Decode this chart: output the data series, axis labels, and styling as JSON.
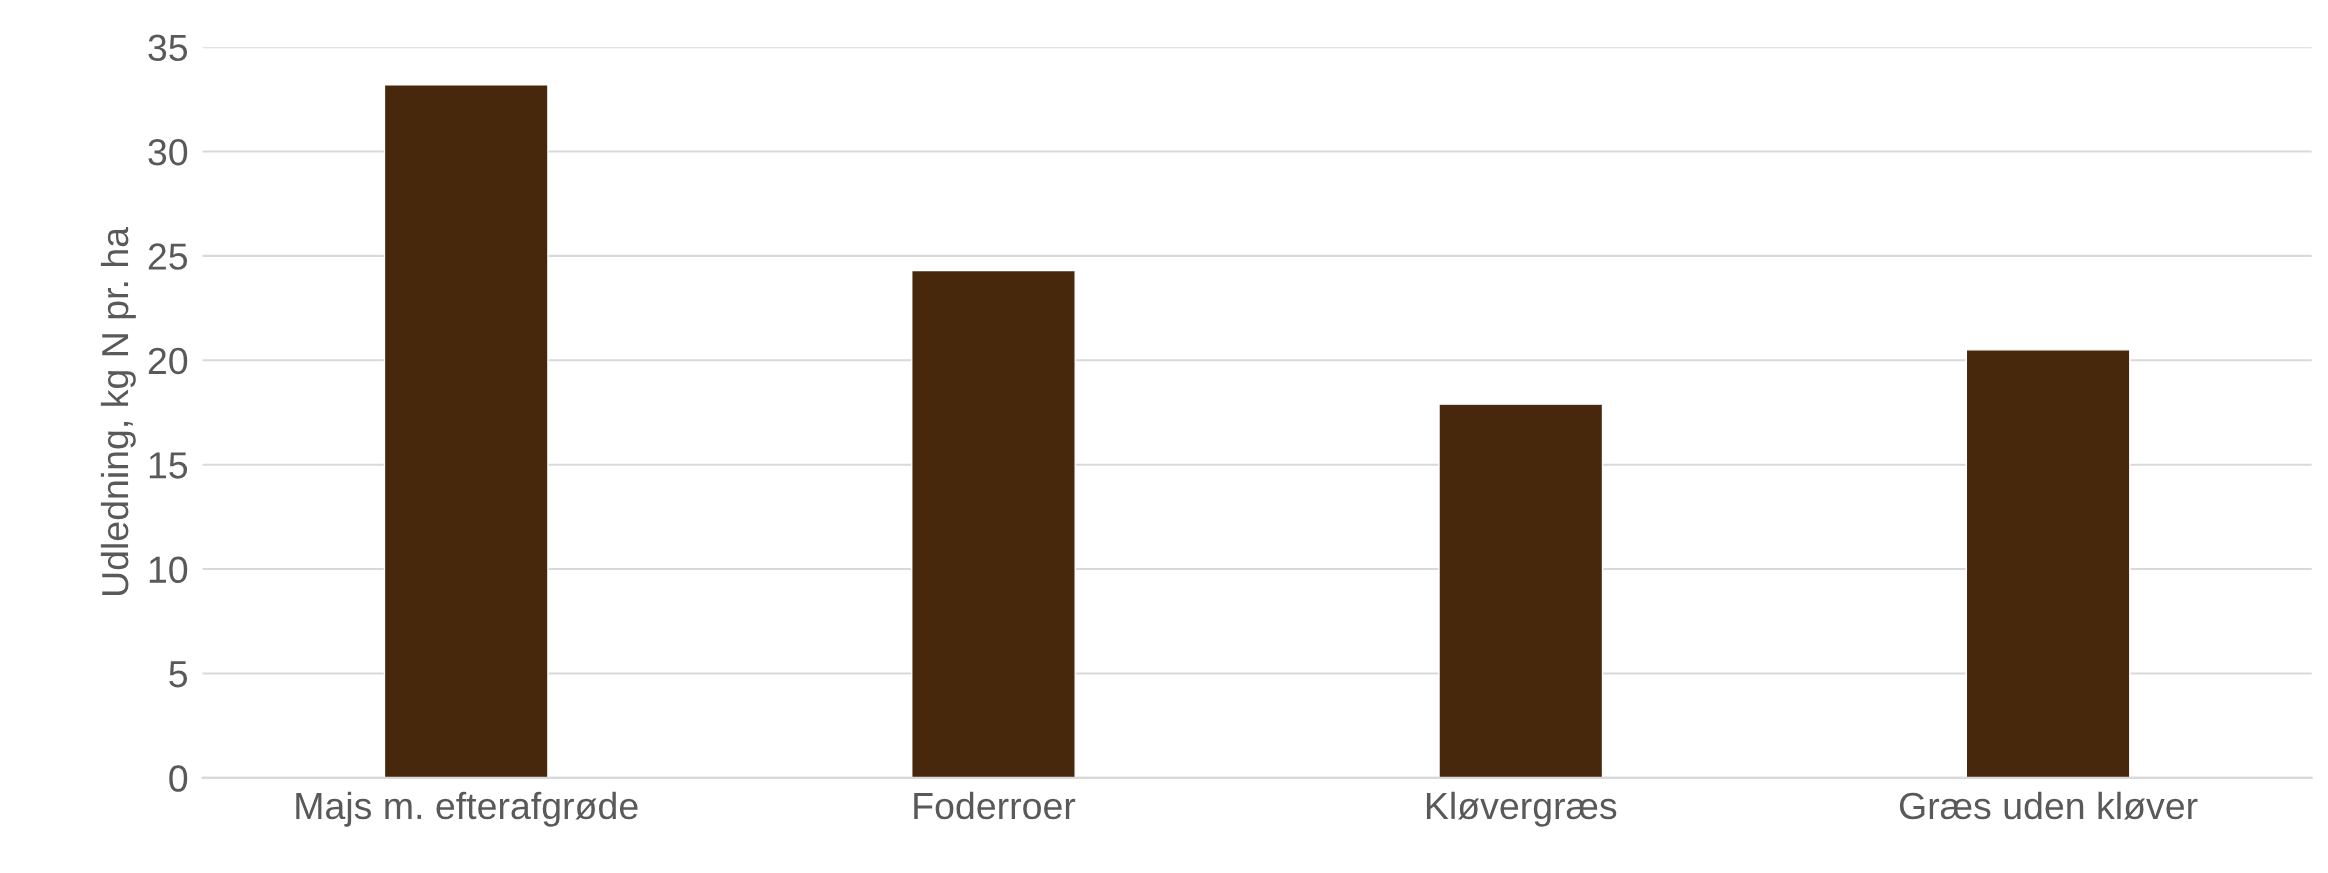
{
  "chart_data": {
    "type": "bar",
    "ylabel": "Udledning, kg N pr. ha",
    "categories": [
      "Majs m. efterafgrøde",
      "Foderroer",
      "Kløvergræs",
      "Græs uden kløver"
    ],
    "values": [
      33.2,
      24.3,
      17.9,
      20.5
    ],
    "color": "#47280d",
    "ylim": [
      0,
      35
    ],
    "yticks": [
      0,
      5,
      10,
      15,
      20,
      25,
      30,
      35
    ],
    "grid": "y"
  }
}
